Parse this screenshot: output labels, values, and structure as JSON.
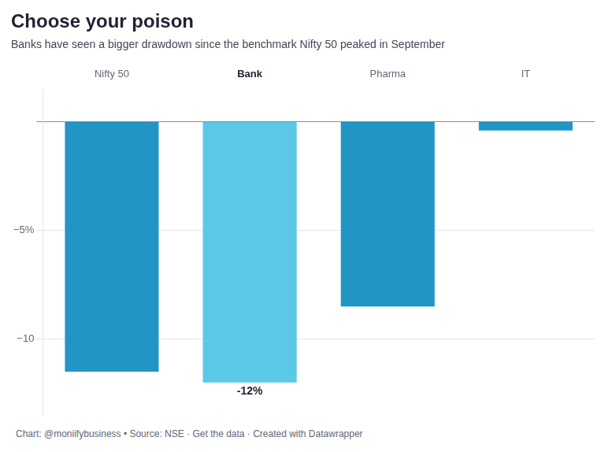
{
  "chart_data": {
    "type": "bar",
    "title": "Choose your poison",
    "subtitle": "Banks have seen a bigger drawdown since the benchmark Nifty 50 peaked in September",
    "footer": "Chart: @moniifybusiness • Source: NSE · Get the data · Created with Datawrapper",
    "categories": [
      "Nifty 50",
      "Bank",
      "Pharma",
      "IT"
    ],
    "values": [
      -11.5,
      -12.0,
      -8.5,
      -0.4
    ],
    "colors": [
      "#2196c4",
      "#5bc8e8",
      "#2196c4",
      "#2196c4"
    ],
    "ylim": [
      -13.5,
      1.5
    ],
    "yticks": [
      {
        "value": 0,
        "label": null
      },
      {
        "value": -5,
        "label": "−5%"
      },
      {
        "value": -10,
        "label": "−10"
      }
    ],
    "grid": true,
    "annotations": [
      {
        "text": "-12%",
        "category": "Bank"
      }
    ]
  }
}
